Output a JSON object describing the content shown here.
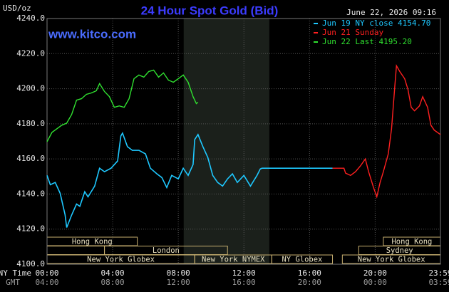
{
  "chart_data": {
    "type": "line",
    "title": "24 Hour Spot Gold (Bid)",
    "site": "www.kitco.com",
    "ylabel": "USD/oz",
    "timestamp": "June 22, 2026 09:16",
    "xlabel": "NY Time",
    "x2label": "GMT",
    "xlim": [
      0,
      23.98
    ],
    "ylim": [
      4100,
      4240
    ],
    "yticks": [
      {
        "value": 4100,
        "label": "4100.0"
      },
      {
        "value": 4120,
        "label": "4120.0"
      },
      {
        "value": 4140,
        "label": "4140.0"
      },
      {
        "value": 4160,
        "label": "4160.0"
      },
      {
        "value": 4180,
        "label": "4180.0"
      },
      {
        "value": 4200,
        "label": "4200.0"
      },
      {
        "value": 4220,
        "label": "4220.0"
      },
      {
        "value": 4240,
        "label": "4240.0"
      }
    ],
    "xticks": [
      {
        "value": 0,
        "label": "00:00"
      },
      {
        "value": 4,
        "label": "04:00"
      },
      {
        "value": 8,
        "label": "08:00"
      },
      {
        "value": 12,
        "label": "12:00"
      },
      {
        "value": 16,
        "label": "16:00"
      },
      {
        "value": 20,
        "label": "20:00"
      },
      {
        "value": 23.98,
        "label": "23:59"
      }
    ],
    "x2ticks": [
      {
        "value": 0,
        "label": "04:00"
      },
      {
        "value": 4,
        "label": "08:00"
      },
      {
        "value": 8,
        "label": "12:00"
      },
      {
        "value": 12,
        "label": "16:00"
      },
      {
        "value": 16,
        "label": "20:00"
      },
      {
        "value": 20,
        "label": "00:00"
      },
      {
        "value": 23.98,
        "label": "03:59"
      }
    ],
    "grid": true,
    "legend": "top-right",
    "shaded_range": [
      8.33,
      13.55
    ],
    "session_rows": [
      [
        {
          "label": "Hong Kong",
          "start": 0,
          "end": 5.5
        },
        {
          "label": "Hong Kong",
          "start": 20.5,
          "end": 23.98
        }
      ],
      [
        {
          "start": 0,
          "end": 3.5
        },
        {
          "label": "London",
          "start": 3.5,
          "end": 11
        },
        {
          "label": "Sydney",
          "start": 19,
          "end": 23.98
        }
      ],
      [
        {
          "label": "New York Globex",
          "start": 0,
          "end": 9
        },
        {
          "label": "New York NYMEX",
          "start": 9,
          "end": 13.7
        },
        {
          "label": "NY Globex",
          "start": 13.7,
          "end": 17.4
        },
        {
          "label": "New York Globex",
          "start": 18,
          "end": 23.98
        }
      ]
    ],
    "series": [
      {
        "name": "Jun 19 NY close 4154.70",
        "color": "#1ec8ff",
        "x": [
          0,
          0.2,
          0.5,
          0.8,
          1.1,
          1.2,
          1.5,
          1.8,
          2.0,
          2.3,
          2.5,
          2.9,
          3.2,
          3.5,
          3.9,
          4.3,
          4.5,
          4.6,
          4.9,
          5.2,
          5.6,
          6.0,
          6.3,
          6.7,
          7.0,
          7.3,
          7.6,
          8.0,
          8.3,
          8.6,
          8.9,
          9.0,
          9.2,
          9.5,
          9.8,
          10.1,
          10.4,
          10.7,
          11.0,
          11.3,
          11.6,
          12.0,
          12.4,
          12.8,
          13.0,
          13.1,
          17.4
        ],
        "values": [
          4150.6,
          4145.3,
          4146.6,
          4140.4,
          4128.2,
          4120.9,
          4128.0,
          4134.3,
          4133.0,
          4141.3,
          4138.4,
          4144.5,
          4154.7,
          4152.7,
          4154.7,
          4158.8,
          4173.1,
          4174.7,
          4167.0,
          4164.9,
          4164.9,
          4162.9,
          4154.7,
          4151.5,
          4149.4,
          4143.7,
          4150.6,
          4148.6,
          4154.7,
          4150.6,
          4156.8,
          4171.0,
          4173.9,
          4167.0,
          4160.8,
          4150.6,
          4146.6,
          4144.5,
          4148.6,
          4151.5,
          4146.6,
          4150.6,
          4144.5,
          4150.6,
          4154.3,
          4154.7,
          4154.7
        ]
      },
      {
        "name": "Jun 21 Sunday",
        "color": "#ff2020",
        "x": [
          17.4,
          18.1,
          18.2,
          18.5,
          18.8,
          19.1,
          19.4,
          19.6,
          19.9,
          20.1,
          20.3,
          20.5,
          20.8,
          21.0,
          21.2,
          21.3,
          21.5,
          21.8,
          22.0,
          22.2,
          22.4,
          22.7,
          22.9,
          23.2,
          23.4,
          23.6,
          23.98
        ],
        "values": [
          4154.7,
          4154.7,
          4151.9,
          4150.6,
          4152.7,
          4156.0,
          4160.0,
          4152.7,
          4143.7,
          4138.4,
          4146.6,
          4152.7,
          4162.9,
          4177.2,
          4201.6,
          4213.1,
          4209.8,
          4205.7,
          4199.6,
          4189.4,
          4187.4,
          4190.2,
          4195.5,
          4189.4,
          4179.2,
          4176.4,
          4173.9
        ]
      },
      {
        "name": "Jun 22 Last 4195.20",
        "color": "#30e030",
        "x": [
          0,
          0.3,
          0.6,
          0.9,
          1.2,
          1.5,
          1.8,
          2.1,
          2.4,
          2.7,
          3.0,
          3.2,
          3.5,
          3.8,
          4.1,
          4.4,
          4.7,
          5.0,
          5.3,
          5.6,
          5.9,
          6.2,
          6.5,
          6.8,
          7.1,
          7.4,
          7.7,
          8.0,
          8.3,
          8.6,
          8.9,
          9.1,
          9.2
        ],
        "values": [
          4169.8,
          4175.1,
          4177.2,
          4179.2,
          4180.4,
          4185.3,
          4193.5,
          4194.3,
          4196.8,
          4197.6,
          4198.8,
          4202.9,
          4198.4,
          4195.5,
          4189.4,
          4190.2,
          4189.4,
          4194.3,
          4205.7,
          4207.8,
          4206.6,
          4209.8,
          4210.6,
          4206.6,
          4209.0,
          4204.9,
          4203.7,
          4205.7,
          4207.8,
          4203.7,
          4195.5,
          4191.5,
          4192.3
        ]
      }
    ]
  }
}
